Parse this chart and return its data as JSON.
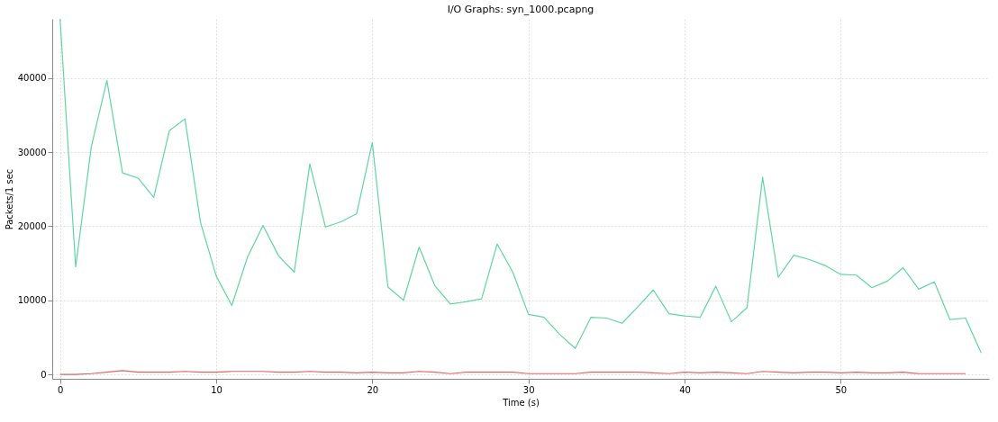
{
  "chart_data": {
    "type": "line",
    "title": "I/O Graphs: syn_1000.pcapng",
    "xlabel": "Time (s)",
    "ylabel": "Packets/1 sec",
    "xlim": [
      -0.5,
      59.5
    ],
    "xticks": [
      0,
      10,
      20,
      30,
      40,
      50
    ],
    "ylim": [
      -600,
      48000
    ],
    "yticks": [
      0,
      10000,
      20000,
      30000,
      40000
    ],
    "grid": true,
    "legend": false,
    "series": [
      {
        "color": "#5fd6a4",
        "x": [
          0,
          1,
          2,
          3,
          4,
          5,
          6,
          7,
          8,
          9,
          10,
          11,
          12,
          13,
          14,
          15,
          16,
          17,
          18,
          19,
          20,
          21,
          22,
          23,
          24,
          25,
          26,
          27,
          28,
          29,
          30,
          31,
          32,
          33,
          34,
          35,
          36,
          37,
          38,
          39,
          40,
          41,
          42,
          43,
          44,
          45,
          46,
          47,
          48,
          49,
          50,
          51,
          52,
          53,
          54,
          55,
          56,
          57,
          58,
          59
        ],
        "values": [
          48000,
          14500,
          30700,
          39700,
          27200,
          26500,
          23900,
          32900,
          34500,
          20500,
          13300,
          9300,
          15800,
          20100,
          16000,
          13800,
          28400,
          19900,
          20600,
          21700,
          31300,
          11800,
          10000,
          17200,
          12000,
          9500,
          9800,
          10200,
          17600,
          13800,
          8100,
          7700,
          5400,
          3500,
          7700,
          7600,
          6900,
          9100,
          11400,
          8200,
          7900,
          7700,
          11900,
          7100,
          9000,
          26600,
          13100,
          16100,
          15500,
          14700,
          13500,
          13400,
          11700,
          12600,
          14400,
          11500,
          12500,
          7400,
          7600,
          2900
        ]
      },
      {
        "color": "#e06666",
        "x": [
          0,
          1,
          2,
          3,
          4,
          5,
          6,
          7,
          8,
          9,
          10,
          11,
          12,
          13,
          14,
          15,
          16,
          17,
          18,
          19,
          20,
          21,
          22,
          23,
          24,
          25,
          26,
          27,
          28,
          29,
          30,
          31,
          32,
          33,
          34,
          35,
          36,
          37,
          38,
          39,
          40,
          41,
          42,
          43,
          44,
          45,
          46,
          47,
          48,
          49,
          50,
          51,
          52,
          53,
          54,
          55,
          56,
          57,
          58
        ],
        "values": [
          0,
          0,
          100,
          300,
          500,
          300,
          300,
          300,
          400,
          300,
          300,
          400,
          400,
          400,
          300,
          300,
          400,
          300,
          300,
          200,
          300,
          200,
          200,
          400,
          300,
          100,
          300,
          300,
          300,
          300,
          100,
          100,
          100,
          100,
          300,
          300,
          300,
          300,
          200,
          100,
          300,
          200,
          300,
          200,
          100,
          400,
          300,
          200,
          300,
          300,
          200,
          300,
          200,
          200,
          300,
          100,
          100,
          100,
          100
        ]
      }
    ]
  }
}
